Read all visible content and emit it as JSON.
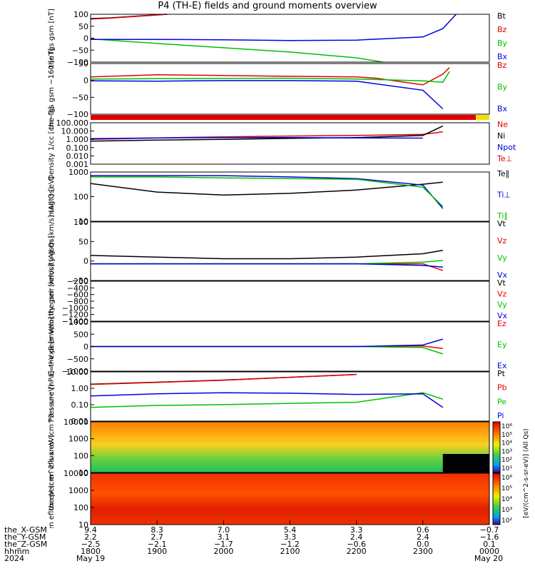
{
  "title": "P4 (TH-E) fields and ground moments overview",
  "chart_data": [
    {
      "id": "fgs_gsm",
      "type": "line",
      "ylabel": "the fgs gsm [nT]",
      "ylim": [
        -100,
        100
      ],
      "ticks": [
        "100",
        "50",
        "0",
        "−50",
        "−100"
      ],
      "legend": [
        {
          "name": "Bt",
          "color": "#000000"
        },
        {
          "name": "Bz",
          "color": "#e00000"
        },
        {
          "name": "By",
          "color": "#00c000"
        },
        {
          "name": "Bx",
          "color": "#0000e0"
        }
      ],
      "series": [
        {
          "name": "Bt",
          "color": "#000000",
          "x": [
            1800,
            1830,
            1900,
            1915
          ],
          "y": [
            82,
            85,
            98,
            100
          ]
        },
        {
          "name": "Bz",
          "color": "#e00000",
          "x": [
            1800,
            1830,
            1900,
            1915
          ],
          "y": [
            80,
            84,
            97,
            100
          ]
        },
        {
          "name": "By",
          "color": "#00c000",
          "x": [
            1800,
            1900,
            2000,
            2100,
            2200,
            2240
          ],
          "y": [
            -3,
            -22,
            -40,
            -58,
            -82,
            -100
          ]
        },
        {
          "name": "Bx",
          "color": "#0000e0",
          "x": [
            1800,
            1900,
            2000,
            2100,
            2200,
            2300,
            2330,
            2350
          ],
          "y": [
            -5,
            -5,
            -7,
            -10,
            -8,
            5,
            40,
            100
          ]
        }
      ]
    },
    {
      "id": "fgs_gsm_160",
      "type": "line",
      "ylabel": "the fgs gsm −160 [nT]",
      "ylim": [
        -130,
        60
      ],
      "ticks": [
        "50",
        "0",
        "−50",
        "−100"
      ],
      "legend": [
        {
          "name": "Bz",
          "color": "#e00000"
        },
        {
          "name": "By",
          "color": "#00c000"
        },
        {
          "name": "Bx",
          "color": "#0000e0"
        }
      ],
      "series": [
        {
          "name": "Bz",
          "color": "#e00000",
          "x": [
            1800,
            1900,
            2000,
            2100,
            2200,
            2230,
            2300,
            2330,
            2340
          ],
          "y": [
            10,
            18,
            15,
            12,
            10,
            5,
            -20,
            20,
            45
          ]
        },
        {
          "name": "By",
          "color": "#00c000",
          "x": [
            1800,
            1900,
            2000,
            2100,
            2200,
            2300,
            2330,
            2340
          ],
          "y": [
            2,
            3,
            4,
            5,
            2,
            -5,
            -10,
            30
          ]
        },
        {
          "name": "Bx",
          "color": "#0000e0",
          "x": [
            1800,
            1900,
            2000,
            2100,
            2200,
            2300,
            2330
          ],
          "y": [
            -5,
            -6,
            -4,
            -4,
            -6,
            -40,
            -110
          ]
        }
      ]
    },
    {
      "id": "density",
      "type": "line",
      "ylabel": "Density 1/cc [cm−3]",
      "ylim_log": [
        0.001,
        100
      ],
      "ticks": [
        "100.000",
        "10.000",
        "1.000",
        "0.100",
        "0.010",
        "0.001"
      ],
      "legend": [
        {
          "name": "Ne",
          "color": "#e00000"
        },
        {
          "name": "Ni",
          "color": "#000000"
        },
        {
          "name": "Npot",
          "color": "#0000e0"
        },
        {
          "name": "Te⊥",
          "color": "#e00000"
        }
      ],
      "series": [
        {
          "name": "Ne",
          "color": "#e00000",
          "x": [
            1800,
            1900,
            2000,
            2100,
            2200,
            2300,
            2330
          ],
          "y": [
            1.0,
            1.5,
            2.0,
            2.5,
            3.0,
            4.0,
            8.0
          ]
        },
        {
          "name": "Ni",
          "color": "#000000",
          "x": [
            1800,
            1900,
            2000,
            2100,
            2200,
            2300,
            2330
          ],
          "y": [
            0.6,
            0.8,
            1.0,
            1.3,
            1.6,
            3.0,
            40
          ]
        },
        {
          "name": "Npot",
          "color": "#0000e0",
          "x": [
            1800,
            1900,
            2000,
            2100,
            2200,
            2300
          ],
          "y": [
            1.2,
            1.5,
            1.6,
            1.6,
            1.5,
            1.4
          ]
        }
      ]
    },
    {
      "id": "temperature",
      "type": "line",
      "ylabel": "magt3 [eV]",
      "ylim_log": [
        5,
        5000
      ],
      "ticks": [
        "1000",
        "100",
        "10"
      ],
      "legend": [
        {
          "name": "Te∥",
          "color": "#000000"
        },
        {
          "name": "Ti⊥",
          "color": "#0000e0"
        },
        {
          "name": "Ti∥",
          "color": "#00c000"
        }
      ],
      "series": [
        {
          "name": "Te∥",
          "color": "#000000",
          "x": [
            1800,
            1900,
            2000,
            2100,
            2200,
            2300,
            2330
          ],
          "y": [
            1000,
            300,
            200,
            250,
            400,
            900,
            1200
          ]
        },
        {
          "name": "Ti⊥",
          "color": "#0000e0",
          "x": [
            1800,
            1900,
            2000,
            2100,
            2200,
            2300,
            2330
          ],
          "y": [
            3000,
            3000,
            3000,
            2500,
            2000,
            800,
            30
          ]
        },
        {
          "name": "Ti∥",
          "color": "#00c000",
          "x": [
            1800,
            1900,
            2000,
            2100,
            2200,
            2300,
            2330
          ],
          "y": [
            2500,
            2500,
            2200,
            2000,
            1800,
            600,
            40
          ]
        }
      ]
    },
    {
      "id": "peir_velocity",
      "type": "line",
      "ylabel": "the peir velocity gsm [km/s] (All Qs)",
      "ylim": [
        -50,
        125
      ],
      "ticks": [
        "100",
        "50",
        "0",
        "−50"
      ],
      "legend": [
        {
          "name": "Vt",
          "color": "#000000"
        },
        {
          "name": "Vz",
          "color": "#e00000"
        },
        {
          "name": "Vy",
          "color": "#00c000"
        },
        {
          "name": "Vx",
          "color": "#0000e0"
        }
      ],
      "series": [
        {
          "name": "Vt",
          "color": "#000000",
          "x": [
            1800,
            1900,
            2000,
            2100,
            2200,
            2300,
            2330
          ],
          "y": [
            25,
            20,
            15,
            15,
            20,
            30,
            40
          ]
        },
        {
          "name": "Vz",
          "color": "#e00000",
          "x": [
            1800,
            1900,
            2000,
            2100,
            2200,
            2300,
            2330
          ],
          "y": [
            0,
            0,
            0,
            0,
            0,
            0,
            -20
          ]
        },
        {
          "name": "Vy",
          "color": "#00c000",
          "x": [
            1800,
            1900,
            2000,
            2100,
            2200,
            2300,
            2330
          ],
          "y": [
            0,
            0,
            0,
            0,
            0,
            5,
            10
          ]
        },
        {
          "name": "Vx",
          "color": "#0000e0",
          "x": [
            1800,
            1900,
            2000,
            2100,
            2200,
            2300,
            2330
          ],
          "y": [
            0,
            0,
            0,
            0,
            0,
            -5,
            -10
          ]
        }
      ]
    },
    {
      "id": "peer_velocity",
      "type": "line",
      "ylabel": "the peer velocity gsm [km/s] (All Qs)",
      "ylim": [
        -1400,
        -200
      ],
      "ticks": [
        "−200",
        "−400",
        "−600",
        "−800",
        "−1000",
        "−1200",
        "−1400"
      ],
      "legend": [
        {
          "name": "Vt",
          "color": "#000000"
        },
        {
          "name": "Vz",
          "color": "#e00000"
        },
        {
          "name": "Vy",
          "color": "#00c000"
        },
        {
          "name": "Vx",
          "color": "#0000e0"
        }
      ],
      "series": []
    },
    {
      "id": "efield",
      "type": "line",
      "ylabel": "E=−VxB [mV/m]",
      "ylim": [
        -1000,
        1000
      ],
      "ticks": [
        "1000",
        "500",
        "0",
        "−500",
        "−1000"
      ],
      "legend": [
        {
          "name": "Ez",
          "color": "#e00000"
        },
        {
          "name": "Ey",
          "color": "#00c000"
        },
        {
          "name": "Ex",
          "color": "#0000e0"
        }
      ],
      "series": [
        {
          "name": "Ez",
          "color": "#e00000",
          "x": [
            1800,
            2000,
            2200,
            2300,
            2330
          ],
          "y": [
            0,
            0,
            0,
            20,
            -80
          ]
        },
        {
          "name": "Ey",
          "color": "#00c000",
          "x": [
            1800,
            2000,
            2200,
            2300,
            2330
          ],
          "y": [
            0,
            0,
            0,
            -40,
            -300
          ]
        },
        {
          "name": "Ex",
          "color": "#0000e0",
          "x": [
            1800,
            2000,
            2200,
            2300,
            2330
          ],
          "y": [
            0,
            0,
            0,
            60,
            300
          ]
        }
      ]
    },
    {
      "id": "pressure",
      "type": "line",
      "ylabel": "Pressure [nPa]",
      "ylim_log": [
        0.005,
        20
      ],
      "ticks": [
        "10.00",
        "1.00",
        "0.10",
        "0.01"
      ],
      "legend": [
        {
          "name": "Pt",
          "color": "#000000"
        },
        {
          "name": "Pb",
          "color": "#e00000"
        },
        {
          "name": "Pe",
          "color": "#00c000"
        },
        {
          "name": "Pi",
          "color": "#0000e0"
        }
      ],
      "series": [
        {
          "name": "Pt",
          "color": "#000000",
          "x": [
            1800,
            1900,
            2000,
            2100,
            2200
          ],
          "y": [
            2.5,
            3.5,
            5,
            8,
            13
          ]
        },
        {
          "name": "Pb",
          "color": "#e00000",
          "x": [
            1800,
            1900,
            2000,
            2100,
            2200
          ],
          "y": [
            2.4,
            3.4,
            4.9,
            8,
            13
          ]
        },
        {
          "name": "Pe",
          "color": "#00c000",
          "x": [
            1800,
            1900,
            2000,
            2100,
            2200,
            2300,
            2330
          ],
          "y": [
            0.05,
            0.07,
            0.08,
            0.1,
            0.12,
            0.6,
            0.2
          ]
        },
        {
          "name": "Pi",
          "color": "#0000e0",
          "x": [
            1800,
            1900,
            2000,
            2100,
            2200,
            2300,
            2330
          ],
          "y": [
            0.35,
            0.5,
            0.6,
            0.55,
            0.45,
            0.5,
            0.05
          ]
        }
      ]
    },
    {
      "id": "peir_eflux",
      "type": "heatmap",
      "ylabel": "the peir en eflux eV (cm^2-s-sr-eV)",
      "ylim_log": [
        5,
        30000
      ],
      "ticks": [
        "10000",
        "1000",
        "100",
        "10"
      ]
    },
    {
      "id": "peer_eflux",
      "type": "heatmap",
      "ylabel": "the peer en eflux eV (cm^2-s-sr-eV)",
      "ylim_log": [
        5,
        30000
      ],
      "ticks": [
        "10000",
        "1000",
        "100",
        "10"
      ]
    }
  ],
  "colorbar": {
    "ticks": [
      "10⁶",
      "10⁵",
      "10⁴",
      "10³",
      "10²",
      "10¹"
    ],
    "ticks2": [
      "10⁶",
      "10⁵",
      "10⁴",
      "10³",
      "10²"
    ],
    "label": "[eV/(cm^2-s-sr-eV)] (All Qs)"
  },
  "xaxis": {
    "ticks_time": [
      "1800",
      "1900",
      "2000",
      "2100",
      "2200",
      "2300",
      "0000"
    ],
    "rows": [
      {
        "label": "the_X-GSM",
        "values": [
          "9.4",
          "8.3",
          "7.0",
          "5.4",
          "3.3",
          "0.6",
          "−0.7"
        ]
      },
      {
        "label": "the_Y-GSM",
        "values": [
          "2.2",
          "2.7",
          "3.1",
          "3.3",
          "2.4",
          "2.4",
          "−1.6"
        ]
      },
      {
        "label": "the_Z-GSM",
        "values": [
          "−2.5",
          "−2.1",
          "−1.7",
          "−1.2",
          "−0.6",
          "0.0",
          "0.1"
        ]
      },
      {
        "label": "hhmm",
        "values": [
          "1800",
          "1900",
          "2000",
          "2100",
          "2200",
          "2300",
          "0000"
        ]
      }
    ],
    "year": "2024",
    "date_start": "May 19",
    "date_end": "May 20"
  }
}
